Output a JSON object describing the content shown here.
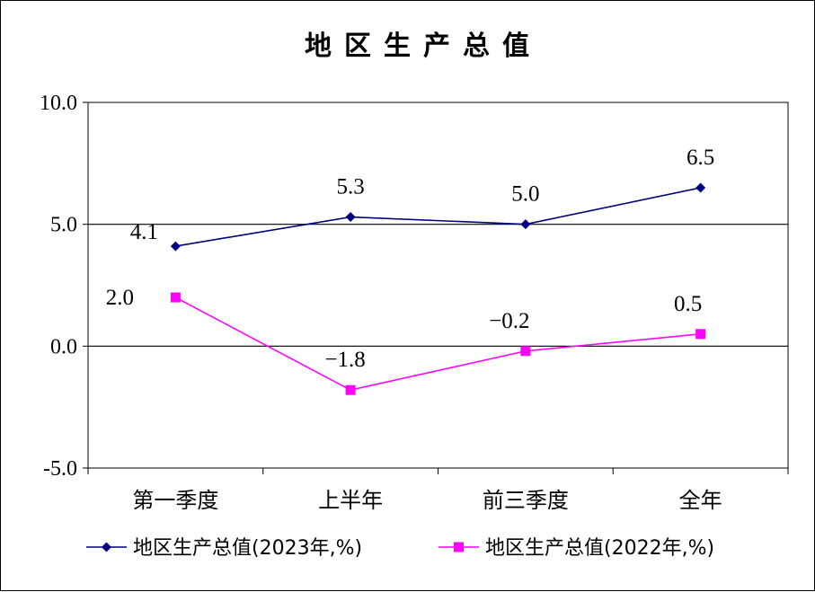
{
  "chart_data": {
    "type": "line",
    "title": "地区生产总值",
    "categories": [
      "第一季度",
      "上半年",
      "前三季度",
      "全年"
    ],
    "ylim": [
      -5.0,
      10.0
    ],
    "yticks": [
      "10.0",
      "5.0",
      "0.0",
      "-5.0"
    ],
    "ytick_values": [
      10,
      5,
      0,
      -5
    ],
    "gridlines": [
      5,
      0
    ],
    "legend_position": "bottom",
    "series": [
      {
        "name": "地区生产总值(2023年,%)",
        "values": [
          4.1,
          5.3,
          5.0,
          6.5
        ],
        "labels": [
          "4.1",
          "5.3",
          "5.0",
          "6.5"
        ],
        "color": "#000080",
        "marker": "diamond"
      },
      {
        "name": "地区生产总值(2022年,%)",
        "values": [
          2.0,
          -1.8,
          -0.2,
          0.5
        ],
        "labels": [
          "2.0",
          "−1.8",
          "−0.2",
          "0.5"
        ],
        "color": "#ff00ff",
        "marker": "square"
      }
    ]
  }
}
